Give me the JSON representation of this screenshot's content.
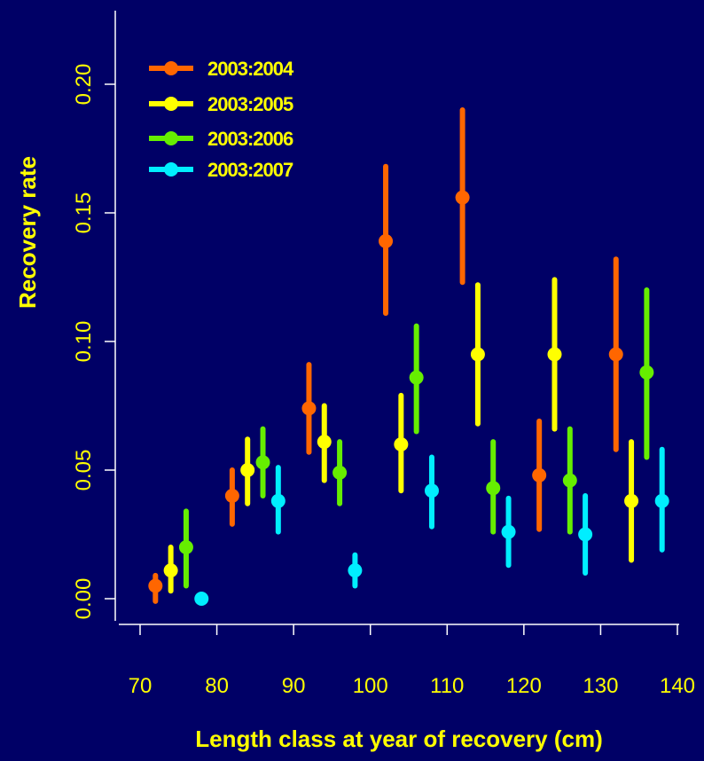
{
  "chart_data": {
    "type": "scatter",
    "error_bars": true,
    "xlabel": "Length class at year of recovery (cm)",
    "ylabel": "Recovery rate",
    "xlim": [
      67,
      141
    ],
    "ylim": [
      -0.01,
      0.23
    ],
    "xticks": [
      "70",
      "80",
      "90",
      "100",
      "110",
      "120",
      "130",
      "140"
    ],
    "yticks": [
      "0.00",
      "0.05",
      "0.10",
      "0.15",
      "0.20"
    ],
    "grid": false,
    "legend_position": "top-left",
    "colors": {
      "background": "#000066",
      "axes": "#ffffff",
      "text": "#ffff00"
    },
    "series": [
      {
        "name": "2003:2004",
        "color": "#ff6600",
        "points": [
          {
            "x": 72,
            "y": 0.005,
            "lo": -0.001,
            "hi": 0.009
          },
          {
            "x": 82,
            "y": 0.04,
            "lo": 0.029,
            "hi": 0.05
          },
          {
            "x": 92,
            "y": 0.074,
            "lo": 0.057,
            "hi": 0.091
          },
          {
            "x": 102,
            "y": 0.139,
            "lo": 0.111,
            "hi": 0.168
          },
          {
            "x": 112,
            "y": 0.156,
            "lo": 0.123,
            "hi": 0.19
          },
          {
            "x": 122,
            "y": 0.048,
            "lo": 0.027,
            "hi": 0.069
          },
          {
            "x": 132,
            "y": 0.095,
            "lo": 0.058,
            "hi": 0.132
          }
        ]
      },
      {
        "name": "2003:2005",
        "color": "#ffff00",
        "points": [
          {
            "x": 74,
            "y": 0.011,
            "lo": 0.003,
            "hi": 0.02
          },
          {
            "x": 84,
            "y": 0.05,
            "lo": 0.037,
            "hi": 0.062
          },
          {
            "x": 94,
            "y": 0.061,
            "lo": 0.046,
            "hi": 0.075
          },
          {
            "x": 104,
            "y": 0.06,
            "lo": 0.042,
            "hi": 0.079
          },
          {
            "x": 114,
            "y": 0.095,
            "lo": 0.068,
            "hi": 0.122
          },
          {
            "x": 124,
            "y": 0.095,
            "lo": 0.066,
            "hi": 0.124
          },
          {
            "x": 134,
            "y": 0.038,
            "lo": 0.015,
            "hi": 0.061
          }
        ]
      },
      {
        "name": "2003:2006",
        "color": "#66ee00",
        "points": [
          {
            "x": 76,
            "y": 0.02,
            "lo": 0.005,
            "hi": 0.034
          },
          {
            "x": 86,
            "y": 0.053,
            "lo": 0.04,
            "hi": 0.066
          },
          {
            "x": 96,
            "y": 0.049,
            "lo": 0.037,
            "hi": 0.061
          },
          {
            "x": 106,
            "y": 0.086,
            "lo": 0.065,
            "hi": 0.106
          },
          {
            "x": 116,
            "y": 0.043,
            "lo": 0.026,
            "hi": 0.061
          },
          {
            "x": 126,
            "y": 0.046,
            "lo": 0.026,
            "hi": 0.066
          },
          {
            "x": 136,
            "y": 0.088,
            "lo": 0.055,
            "hi": 0.12
          }
        ]
      },
      {
        "name": "2003:2007",
        "color": "#00eeff",
        "points": [
          {
            "x": 78,
            "y": 0.0,
            "lo": -0.001,
            "hi": 0.001
          },
          {
            "x": 88,
            "y": 0.038,
            "lo": 0.026,
            "hi": 0.051
          },
          {
            "x": 98,
            "y": 0.011,
            "lo": 0.005,
            "hi": 0.017
          },
          {
            "x": 108,
            "y": 0.042,
            "lo": 0.028,
            "hi": 0.055
          },
          {
            "x": 118,
            "y": 0.026,
            "lo": 0.013,
            "hi": 0.039
          },
          {
            "x": 128,
            "y": 0.025,
            "lo": 0.01,
            "hi": 0.04
          },
          {
            "x": 138,
            "y": 0.038,
            "lo": 0.019,
            "hi": 0.058
          }
        ]
      }
    ]
  }
}
